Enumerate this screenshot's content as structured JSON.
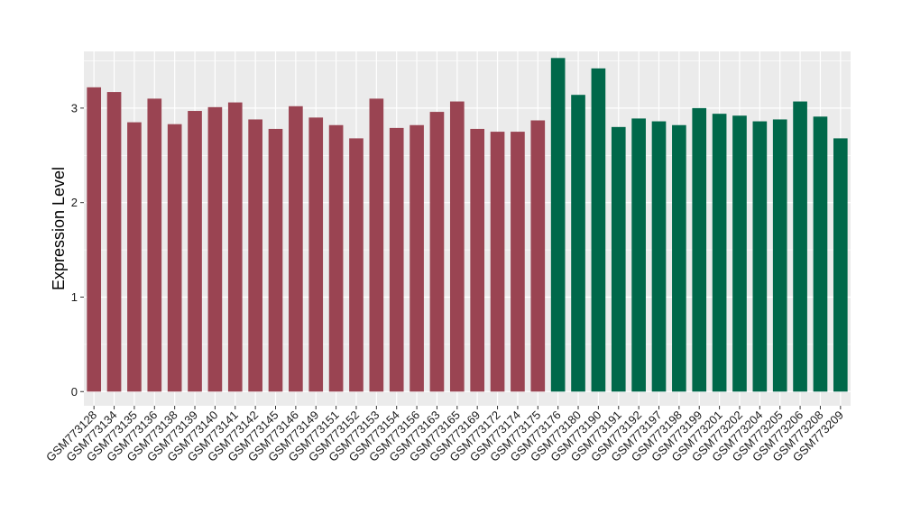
{
  "chart_data": {
    "type": "bar",
    "title": "",
    "xlabel": "",
    "ylabel": "Expression Level",
    "ylim": [
      -0.15,
      3.6
    ],
    "yticks": [
      0,
      1,
      2,
      3
    ],
    "grid": true,
    "legend": "none",
    "categories": [
      "GSM773128",
      "GSM773134",
      "GSM773135",
      "GSM773136",
      "GSM773138",
      "GSM773139",
      "GSM773140",
      "GSM773141",
      "GSM773142",
      "GSM773145",
      "GSM773146",
      "GSM773149",
      "GSM773151",
      "GSM773152",
      "GSM773153",
      "GSM773154",
      "GSM773156",
      "GSM773163",
      "GSM773165",
      "GSM773169",
      "GSM773172",
      "GSM773174",
      "GSM773175",
      "GSM773176",
      "GSM773180",
      "GSM773190",
      "GSM773191",
      "GSM773192",
      "GSM773197",
      "GSM773198",
      "GSM773199",
      "GSM773201",
      "GSM773202",
      "GSM773204",
      "GSM773205",
      "GSM773206",
      "GSM773208",
      "GSM773209"
    ],
    "values": [
      3.22,
      3.17,
      2.85,
      3.1,
      2.83,
      2.97,
      3.01,
      3.06,
      2.88,
      2.78,
      3.02,
      2.9,
      2.82,
      2.68,
      3.1,
      2.79,
      2.82,
      2.96,
      3.07,
      2.78,
      2.75,
      2.75,
      2.87,
      3.53,
      3.14,
      3.42,
      2.8,
      2.89,
      2.86,
      2.82,
      3.0,
      2.94,
      2.92,
      2.86,
      2.88,
      3.07,
      2.91,
      2.68
    ],
    "groups": [
      0,
      0,
      0,
      0,
      0,
      0,
      0,
      0,
      0,
      0,
      0,
      0,
      0,
      0,
      0,
      0,
      0,
      0,
      0,
      0,
      0,
      0,
      0,
      1,
      1,
      1,
      1,
      1,
      1,
      1,
      1,
      1,
      1,
      1,
      1,
      1,
      1,
      1
    ],
    "colors": {
      "group_0": "#9A4452",
      "group_1": "#00684A",
      "panel": "#EBEBEB",
      "grid": "#FFFFFF",
      "tick": "#333333"
    }
  }
}
